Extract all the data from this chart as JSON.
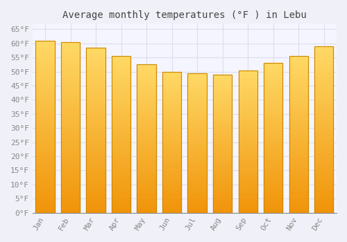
{
  "title": "Average monthly temperatures (°F ) in Lebu",
  "months": [
    "Jan",
    "Feb",
    "Mar",
    "Apr",
    "May",
    "Jun",
    "Jul",
    "Aug",
    "Sep",
    "Oct",
    "Nov",
    "Dec"
  ],
  "values": [
    61.0,
    60.5,
    58.5,
    55.5,
    52.5,
    50.0,
    49.5,
    49.0,
    50.5,
    53.0,
    55.5,
    59.0
  ],
  "bar_color_top": "#FFD966",
  "bar_color_bottom": "#F0940A",
  "bar_edge_color": "#CC8800",
  "background_color": "#F0F0F8",
  "plot_bg_color": "#F5F5FF",
  "grid_color": "#DDDDEE",
  "ylim": [
    0,
    67
  ],
  "ytick_step": 5,
  "title_fontsize": 10,
  "tick_fontsize": 8,
  "font_family": "monospace"
}
